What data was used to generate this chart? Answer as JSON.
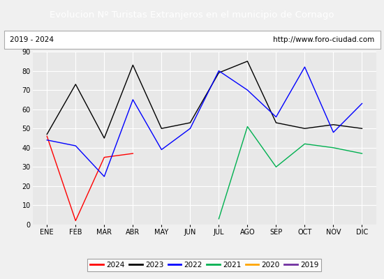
{
  "title": "Evolucion Nº Turistas Extranjeros en el municipio de Cornago",
  "subtitle_left": "2019 - 2024",
  "subtitle_right": "http://www.foro-ciudad.com",
  "title_bg_color": "#4472c4",
  "title_text_color": "#ffffff",
  "months": [
    "ENE",
    "FEB",
    "MAR",
    "ABR",
    "MAY",
    "JUN",
    "JUL",
    "AGO",
    "SEP",
    "OCT",
    "NOV",
    "DIC"
  ],
  "ylim": [
    0,
    90
  ],
  "yticks": [
    0,
    10,
    20,
    30,
    40,
    50,
    60,
    70,
    80,
    90
  ],
  "series": {
    "2024": {
      "color": "#ff0000",
      "data": [
        46,
        2,
        35,
        37,
        null,
        null,
        null,
        null,
        null,
        null,
        null,
        null
      ]
    },
    "2023": {
      "color": "#000000",
      "data": [
        47,
        73,
        45,
        83,
        50,
        53,
        79,
        85,
        53,
        50,
        52,
        50
      ]
    },
    "2022": {
      "color": "#0000ff",
      "data": [
        44,
        41,
        25,
        65,
        39,
        50,
        80,
        70,
        56,
        82,
        48,
        63
      ]
    },
    "2021": {
      "color": "#00b050",
      "data": [
        null,
        null,
        null,
        null,
        null,
        null,
        3,
        51,
        30,
        42,
        40,
        37
      ]
    },
    "2020": {
      "color": "#ffa500",
      "data": [
        null,
        null,
        null,
        null,
        null,
        null,
        null,
        null,
        null,
        null,
        null,
        null
      ]
    },
    "2019": {
      "color": "#7030a0",
      "data": [
        null,
        null,
        null,
        null,
        null,
        null,
        null,
        null,
        null,
        null,
        null,
        null
      ]
    }
  },
  "legend_order": [
    "2024",
    "2023",
    "2022",
    "2021",
    "2020",
    "2019"
  ],
  "bg_color": "#f0f0f0",
  "plot_bg_color": "#e8e8e8",
  "grid_color": "#ffffff",
  "title_fontsize": 9.5,
  "tick_fontsize": 7,
  "legend_fontsize": 7.5
}
